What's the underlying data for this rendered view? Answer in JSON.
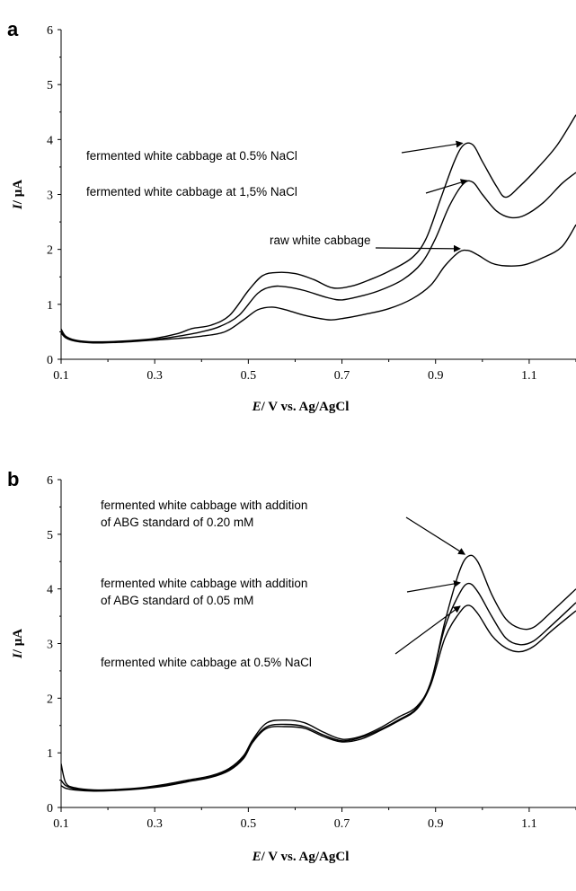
{
  "chart_data": [
    {
      "type": "line",
      "panel_label": "a",
      "xlabel_var": "E",
      "xlabel_rest": "/ V vs. Ag/AgCl",
      "ylabel_var": "I",
      "ylabel_rest": "/ μA",
      "xlim": [
        0.1,
        1.2
      ],
      "ylim": [
        0,
        6
      ],
      "x_ticks": [
        "0.1",
        "0.3",
        "0.5",
        "0.7",
        "0.9",
        "1.1"
      ],
      "x_tick_values": [
        0.1,
        0.3,
        0.5,
        0.7,
        0.9,
        1.1
      ],
      "y_ticks": [
        "0",
        "1",
        "2",
        "3",
        "4",
        "5",
        "6"
      ],
      "grid": false,
      "series": [
        {
          "name": "fermented white cabbage at 0.5% NaCl",
          "points": [
            [
              0.1,
              0.55
            ],
            [
              0.11,
              0.42
            ],
            [
              0.13,
              0.35
            ],
            [
              0.16,
              0.32
            ],
            [
              0.2,
              0.32
            ],
            [
              0.25,
              0.34
            ],
            [
              0.3,
              0.38
            ],
            [
              0.35,
              0.47
            ],
            [
              0.38,
              0.56
            ],
            [
              0.42,
              0.62
            ],
            [
              0.46,
              0.8
            ],
            [
              0.5,
              1.25
            ],
            [
              0.53,
              1.52
            ],
            [
              0.56,
              1.58
            ],
            [
              0.6,
              1.56
            ],
            [
              0.64,
              1.45
            ],
            [
              0.68,
              1.3
            ],
            [
              0.72,
              1.33
            ],
            [
              0.76,
              1.45
            ],
            [
              0.8,
              1.6
            ],
            [
              0.85,
              1.85
            ],
            [
              0.88,
              2.2
            ],
            [
              0.91,
              2.9
            ],
            [
              0.94,
              3.6
            ],
            [
              0.96,
              3.9
            ],
            [
              0.98,
              3.9
            ],
            [
              1.0,
              3.6
            ],
            [
              1.03,
              3.15
            ],
            [
              1.05,
              2.95
            ],
            [
              1.08,
              3.15
            ],
            [
              1.12,
              3.5
            ],
            [
              1.16,
              3.9
            ],
            [
              1.2,
              4.45
            ]
          ]
        },
        {
          "name": "fermented white cabbage at 1,5% NaCl",
          "points": [
            [
              0.1,
              0.5
            ],
            [
              0.11,
              0.4
            ],
            [
              0.13,
              0.34
            ],
            [
              0.16,
              0.31
            ],
            [
              0.2,
              0.31
            ],
            [
              0.25,
              0.33
            ],
            [
              0.3,
              0.36
            ],
            [
              0.35,
              0.42
            ],
            [
              0.4,
              0.5
            ],
            [
              0.44,
              0.6
            ],
            [
              0.48,
              0.8
            ],
            [
              0.52,
              1.2
            ],
            [
              0.55,
              1.32
            ],
            [
              0.58,
              1.32
            ],
            [
              0.62,
              1.25
            ],
            [
              0.67,
              1.12
            ],
            [
              0.7,
              1.08
            ],
            [
              0.74,
              1.15
            ],
            [
              0.78,
              1.25
            ],
            [
              0.83,
              1.45
            ],
            [
              0.87,
              1.75
            ],
            [
              0.9,
              2.2
            ],
            [
              0.93,
              2.8
            ],
            [
              0.96,
              3.2
            ],
            [
              0.98,
              3.22
            ],
            [
              1.0,
              3.0
            ],
            [
              1.03,
              2.7
            ],
            [
              1.06,
              2.58
            ],
            [
              1.09,
              2.62
            ],
            [
              1.13,
              2.85
            ],
            [
              1.17,
              3.2
            ],
            [
              1.2,
              3.4
            ]
          ]
        },
        {
          "name": "raw white cabbage",
          "points": [
            [
              0.1,
              0.48
            ],
            [
              0.11,
              0.39
            ],
            [
              0.13,
              0.33
            ],
            [
              0.16,
              0.3
            ],
            [
              0.2,
              0.3
            ],
            [
              0.25,
              0.32
            ],
            [
              0.3,
              0.35
            ],
            [
              0.35,
              0.38
            ],
            [
              0.4,
              0.42
            ],
            [
              0.45,
              0.5
            ],
            [
              0.49,
              0.72
            ],
            [
              0.52,
              0.9
            ],
            [
              0.55,
              0.95
            ],
            [
              0.58,
              0.9
            ],
            [
              0.62,
              0.8
            ],
            [
              0.67,
              0.72
            ],
            [
              0.7,
              0.74
            ],
            [
              0.75,
              0.82
            ],
            [
              0.8,
              0.92
            ],
            [
              0.85,
              1.1
            ],
            [
              0.89,
              1.35
            ],
            [
              0.92,
              1.7
            ],
            [
              0.95,
              1.95
            ],
            [
              0.97,
              1.98
            ],
            [
              0.99,
              1.9
            ],
            [
              1.02,
              1.75
            ],
            [
              1.05,
              1.7
            ],
            [
              1.09,
              1.72
            ],
            [
              1.13,
              1.85
            ],
            [
              1.17,
              2.05
            ],
            [
              1.2,
              2.45
            ]
          ]
        }
      ],
      "annotations": [
        {
          "text": "fermented white cabbage at 0.5% NaCl",
          "series": 0
        },
        {
          "text": "fermented white cabbage at 1,5% NaCl",
          "series": 1
        },
        {
          "text": "raw white cabbage",
          "series": 2
        }
      ]
    },
    {
      "type": "line",
      "panel_label": "b",
      "xlabel_var": "E",
      "xlabel_rest": "/ V vs. Ag/AgCl",
      "ylabel_var": "I",
      "ylabel_rest": "/ μA",
      "xlim": [
        0.1,
        1.2
      ],
      "ylim": [
        0,
        6
      ],
      "x_ticks": [
        "0.1",
        "0.3",
        "0.5",
        "0.7",
        "0.9",
        "1.1"
      ],
      "x_tick_values": [
        0.1,
        0.3,
        0.5,
        0.7,
        0.9,
        1.1
      ],
      "y_ticks": [
        "0",
        "1",
        "2",
        "3",
        "4",
        "5",
        "6"
      ],
      "grid": false,
      "series": [
        {
          "name": "fermented white cabbage with addition of ABG standard of 0.20 mM",
          "points": [
            [
              0.1,
              0.8
            ],
            [
              0.11,
              0.45
            ],
            [
              0.13,
              0.36
            ],
            [
              0.17,
              0.32
            ],
            [
              0.22,
              0.33
            ],
            [
              0.27,
              0.36
            ],
            [
              0.32,
              0.42
            ],
            [
              0.37,
              0.5
            ],
            [
              0.42,
              0.58
            ],
            [
              0.46,
              0.72
            ],
            [
              0.49,
              0.95
            ],
            [
              0.51,
              1.25
            ],
            [
              0.54,
              1.55
            ],
            [
              0.58,
              1.6
            ],
            [
              0.62,
              1.55
            ],
            [
              0.66,
              1.38
            ],
            [
              0.7,
              1.25
            ],
            [
              0.74,
              1.3
            ],
            [
              0.78,
              1.45
            ],
            [
              0.82,
              1.65
            ],
            [
              0.86,
              1.85
            ],
            [
              0.89,
              2.3
            ],
            [
              0.92,
              3.4
            ],
            [
              0.95,
              4.3
            ],
            [
              0.97,
              4.6
            ],
            [
              0.99,
              4.5
            ],
            [
              1.02,
              3.9
            ],
            [
              1.05,
              3.45
            ],
            [
              1.08,
              3.28
            ],
            [
              1.11,
              3.3
            ],
            [
              1.15,
              3.6
            ],
            [
              1.2,
              4.0
            ]
          ]
        },
        {
          "name": "fermented white cabbage with addition of ABG standard of 0.05 mM",
          "points": [
            [
              0.1,
              0.5
            ],
            [
              0.11,
              0.4
            ],
            [
              0.13,
              0.34
            ],
            [
              0.17,
              0.31
            ],
            [
              0.22,
              0.32
            ],
            [
              0.27,
              0.35
            ],
            [
              0.32,
              0.4
            ],
            [
              0.37,
              0.48
            ],
            [
              0.42,
              0.56
            ],
            [
              0.46,
              0.7
            ],
            [
              0.49,
              0.92
            ],
            [
              0.51,
              1.22
            ],
            [
              0.54,
              1.48
            ],
            [
              0.58,
              1.52
            ],
            [
              0.62,
              1.48
            ],
            [
              0.66,
              1.33
            ],
            [
              0.7,
              1.22
            ],
            [
              0.74,
              1.28
            ],
            [
              0.78,
              1.42
            ],
            [
              0.82,
              1.6
            ],
            [
              0.86,
              1.82
            ],
            [
              0.89,
              2.3
            ],
            [
              0.92,
              3.3
            ],
            [
              0.95,
              3.9
            ],
            [
              0.97,
              4.1
            ],
            [
              0.99,
              3.95
            ],
            [
              1.02,
              3.5
            ],
            [
              1.05,
              3.1
            ],
            [
              1.08,
              2.98
            ],
            [
              1.11,
              3.05
            ],
            [
              1.15,
              3.35
            ],
            [
              1.2,
              3.75
            ]
          ]
        },
        {
          "name": "fermented white cabbage at 0.5% NaCl",
          "points": [
            [
              0.1,
              0.4
            ],
            [
              0.11,
              0.35
            ],
            [
              0.13,
              0.32
            ],
            [
              0.17,
              0.3
            ],
            [
              0.22,
              0.31
            ],
            [
              0.27,
              0.34
            ],
            [
              0.32,
              0.39
            ],
            [
              0.37,
              0.47
            ],
            [
              0.42,
              0.55
            ],
            [
              0.46,
              0.68
            ],
            [
              0.49,
              0.9
            ],
            [
              0.51,
              1.2
            ],
            [
              0.54,
              1.45
            ],
            [
              0.58,
              1.48
            ],
            [
              0.62,
              1.45
            ],
            [
              0.66,
              1.3
            ],
            [
              0.7,
              1.2
            ],
            [
              0.74,
              1.25
            ],
            [
              0.78,
              1.4
            ],
            [
              0.82,
              1.58
            ],
            [
              0.86,
              1.8
            ],
            [
              0.89,
              2.25
            ],
            [
              0.92,
              3.1
            ],
            [
              0.95,
              3.55
            ],
            [
              0.97,
              3.7
            ],
            [
              0.99,
              3.55
            ],
            [
              1.02,
              3.15
            ],
            [
              1.05,
              2.92
            ],
            [
              1.08,
              2.85
            ],
            [
              1.11,
              2.95
            ],
            [
              1.15,
              3.25
            ],
            [
              1.2,
              3.6
            ]
          ]
        }
      ],
      "annotations": [
        {
          "text_lines": [
            "fermented white cabbage with addition",
            "of ABG standard of 0.20 mM"
          ],
          "series": 0
        },
        {
          "text_lines": [
            "fermented white cabbage with addition",
            "of ABG standard of 0.05 mM"
          ],
          "series": 1
        },
        {
          "text_lines": [
            "fermented white cabbage at 0.5% NaCl"
          ],
          "series": 2
        }
      ]
    }
  ]
}
